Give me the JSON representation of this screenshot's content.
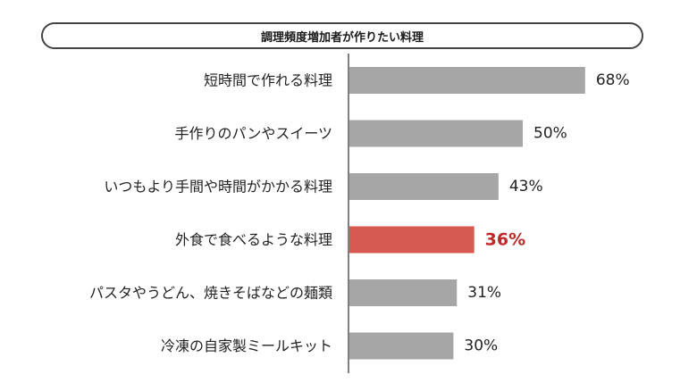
{
  "chart_data": {
    "type": "bar",
    "orientation": "horizontal",
    "title": "調理頻度増加者が作りたい料理",
    "categories": [
      "短時間で作れる料理",
      "手作りのパンやスイーツ",
      "いつもより手間や時間がかかる料理",
      "外食で食べるような料理",
      "パスタやうどん、焼きそばなどの麺類",
      "冷凍の自家製ミールキット"
    ],
    "values": [
      68,
      50,
      43,
      36,
      31,
      30
    ],
    "value_labels": [
      "68%",
      "50%",
      "43%",
      "36%",
      "31%",
      "30%"
    ],
    "highlight_index": 3,
    "unit": "%",
    "xlim": [
      0,
      100
    ],
    "grid": false,
    "legend": "none",
    "colors": {
      "bar": "#a6a6a6",
      "highlight_bar": "#d65a52",
      "highlight_text": "#c0282a",
      "axis": "#555555"
    }
  }
}
